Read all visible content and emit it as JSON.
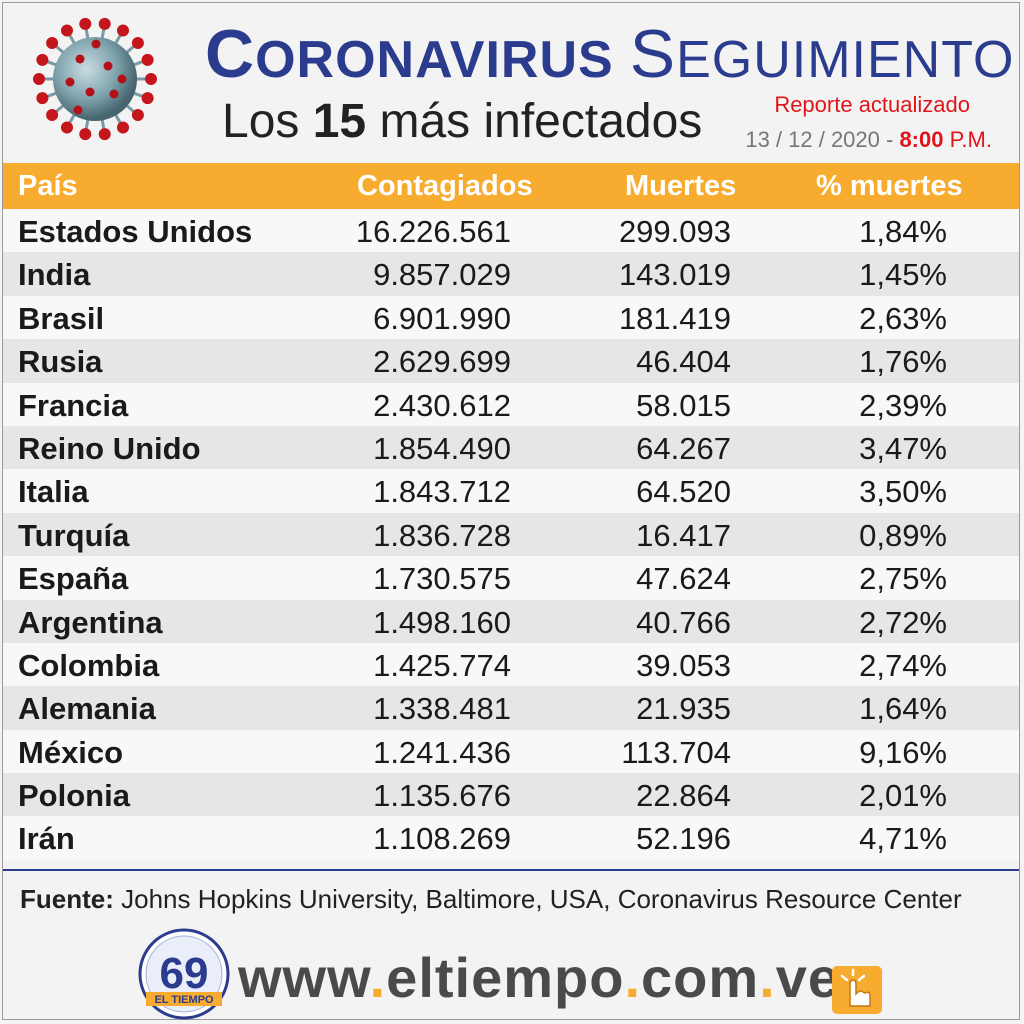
{
  "header": {
    "title_part1": "Coronavirus",
    "title_part2": "Seguimiento",
    "subtitle_pre": "Los ",
    "subtitle_num": "15",
    "subtitle_post": " más infectados",
    "report_label": "Reporte actualizado",
    "date": "13 / 12 / 2020 - ",
    "time": "8:00",
    "ampm": " P.M."
  },
  "table": {
    "columns": [
      "País",
      "Contagiados",
      "Muertes",
      "% muertes"
    ],
    "rows": [
      {
        "country": "Estados Unidos",
        "cases": "16.226.561",
        "deaths": "299.093",
        "pct": "1,84%"
      },
      {
        "country": "India",
        "cases": "9.857.029",
        "deaths": "143.019",
        "pct": "1,45%"
      },
      {
        "country": "Brasil",
        "cases": "6.901.990",
        "deaths": "181.419",
        "pct": "2,63%"
      },
      {
        "country": "Rusia",
        "cases": "2.629.699",
        "deaths": "46.404",
        "pct": "1,76%"
      },
      {
        "country": "Francia",
        "cases": "2.430.612",
        "deaths": "58.015",
        "pct": "2,39%"
      },
      {
        "country": "Reino Unido",
        "cases": "1.854.490",
        "deaths": "64.267",
        "pct": "3,47%"
      },
      {
        "country": "Italia",
        "cases": "1.843.712",
        "deaths": "64.520",
        "pct": "3,50%"
      },
      {
        "country": "Turquía",
        "cases": "1.836.728",
        "deaths": "16.417",
        "pct": "0,89%"
      },
      {
        "country": "España",
        "cases": "1.730.575",
        "deaths": "47.624",
        "pct": "2,75%"
      },
      {
        "country": "Argentina",
        "cases": "1.498.160",
        "deaths": "40.766",
        "pct": "2,72%"
      },
      {
        "country": "Colombia",
        "cases": "1.425.774",
        "deaths": "39.053",
        "pct": "2,74%"
      },
      {
        "country": "Alemania",
        "cases": "1.338.481",
        "deaths": "21.935",
        "pct": "1,64%"
      },
      {
        "country": "México",
        "cases": "1.241.436",
        "deaths": "113.704",
        "pct": "9,16%"
      },
      {
        "country": "Polonia",
        "cases": "1.135.676",
        "deaths": "22.864",
        "pct": "2,01%"
      },
      {
        "country": "Irán",
        "cases": "1.108.269",
        "deaths": "52.196",
        "pct": "4,71%"
      }
    ]
  },
  "footer": {
    "source_label": "Fuente:",
    "source_text": " Johns Hopkins University, Baltimore, USA, Coronavirus Resource Center",
    "logo_number": "69",
    "logo_name": "EL TIEMPO",
    "url_parts": [
      "www",
      ".",
      "eltiempo",
      ".",
      "com",
      ".",
      "ve"
    ]
  },
  "colors": {
    "brand_blue": "#2b3c8e",
    "header_orange": "#f7ab2f",
    "accent_red": "#e0151b"
  }
}
